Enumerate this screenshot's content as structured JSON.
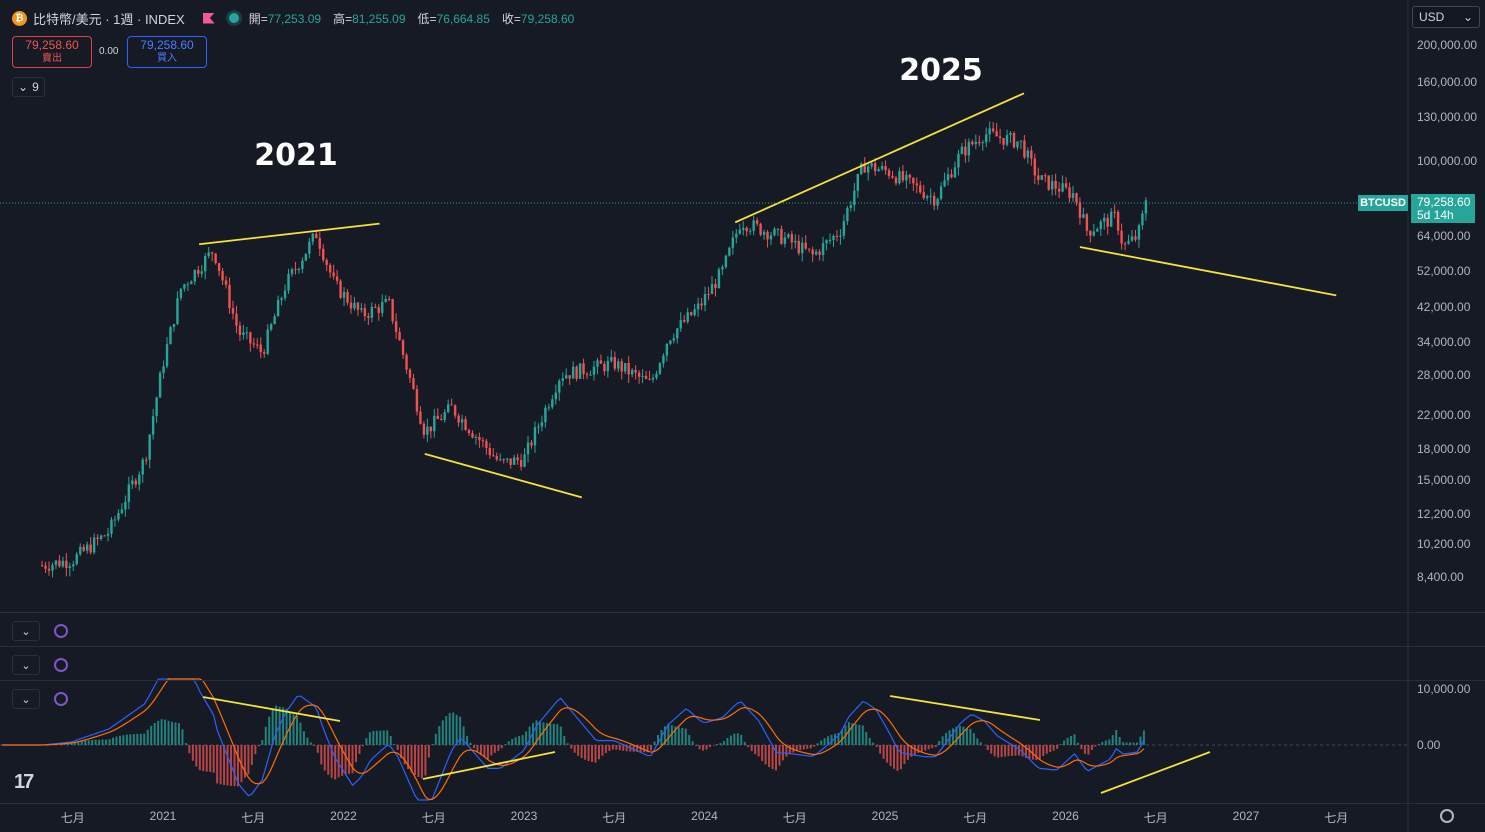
{
  "header": {
    "coin_glyph": "₿",
    "title": "比特幣/美元 · 1週 · INDEX",
    "open_label": "開=",
    "open": "77,253.09",
    "high_label": "高=",
    "high": "81,255.09",
    "low_label": "低=",
    "low": "76,664.85",
    "close_label": "收=",
    "close": "79,258.60"
  },
  "trade": {
    "sell_price": "79,258.60",
    "sell_label": "賣出",
    "spread": "0.00",
    "buy_price": "79,258.60",
    "buy_label": "買入"
  },
  "indicators_count": "9",
  "currency": "USD",
  "price_axis": [
    "200,000.00",
    "160,000.00",
    "130,000.00",
    "100,000.00",
    "64,000.00",
    "52,000.00",
    "42,000.00",
    "34,000.00",
    "28,000.00",
    "22,000.00",
    "18,000.00",
    "15,000.00",
    "12,200.00",
    "10,200.00",
    "8,400.00"
  ],
  "macd_axis": [
    "10,000.00",
    "0.00"
  ],
  "time_axis": [
    "七月",
    "2021",
    "七月",
    "2022",
    "七月",
    "2023",
    "七月",
    "2024",
    "七月",
    "2025",
    "七月",
    "2026",
    "七月",
    "2027",
    "七月"
  ],
  "last_price": {
    "ticker": "BTCUSD",
    "price": "79,258.60",
    "countdown": "5d 14h"
  },
  "annotations": [
    "2021",
    "2025"
  ],
  "colors": {
    "up": "#26a69a",
    "down": "#ef5350",
    "trend": "#f5e23a",
    "macd": "#2962ff",
    "signal": "#ff6d00"
  },
  "chart_data": {
    "type": "candlestick",
    "series_shape": [
      [
        2020.33,
        9000
      ],
      [
        2020.5,
        9300
      ],
      [
        2020.7,
        11000
      ],
      [
        2020.9,
        17000
      ],
      [
        2021.0,
        30000
      ],
      [
        2021.1,
        47000
      ],
      [
        2021.28,
        59000
      ],
      [
        2021.42,
        36000
      ],
      [
        2021.55,
        32000
      ],
      [
        2021.68,
        48000
      ],
      [
        2021.85,
        65000
      ],
      [
        2021.95,
        48000
      ],
      [
        2022.1,
        40000
      ],
      [
        2022.25,
        43000
      ],
      [
        2022.45,
        20000
      ],
      [
        2022.6,
        23000
      ],
      [
        2022.87,
        16500
      ],
      [
        2023.0,
        17000
      ],
      [
        2023.2,
        28000
      ],
      [
        2023.5,
        30000
      ],
      [
        2023.7,
        26500
      ],
      [
        2023.8,
        35000
      ],
      [
        2023.97,
        42000
      ],
      [
        2024.1,
        52000
      ],
      [
        2024.2,
        70000
      ],
      [
        2024.45,
        63000
      ],
      [
        2024.6,
        57000
      ],
      [
        2024.75,
        66000
      ],
      [
        2024.88,
        98000
      ],
      [
        2025.02,
        94000
      ],
      [
        2025.28,
        80000
      ],
      [
        2025.42,
        105000
      ],
      [
        2025.55,
        118000
      ],
      [
        2025.75,
        112000
      ],
      [
        2025.85,
        90000
      ],
      [
        2026.05,
        82000
      ],
      [
        2026.12,
        66000
      ],
      [
        2026.28,
        72000
      ],
      [
        2026.32,
        60000
      ],
      [
        2026.4,
        64000
      ],
      [
        2026.45,
        79258.6
      ]
    ],
    "macd": {
      "zero": 0,
      "top_tick": 10000
    },
    "trendlines": [
      {
        "from": [
          2021.2,
          61000
        ],
        "to": [
          2022.2,
          69000
        ]
      },
      {
        "from": [
          2022.45,
          17500
        ],
        "to": [
          2023.32,
          13500
        ]
      },
      {
        "from": [
          2024.17,
          69500
        ],
        "to": [
          2025.77,
          150000
        ]
      },
      {
        "from": [
          2026.08,
          60000
        ],
        "to": [
          2027.5,
          45000
        ]
      }
    ]
  }
}
